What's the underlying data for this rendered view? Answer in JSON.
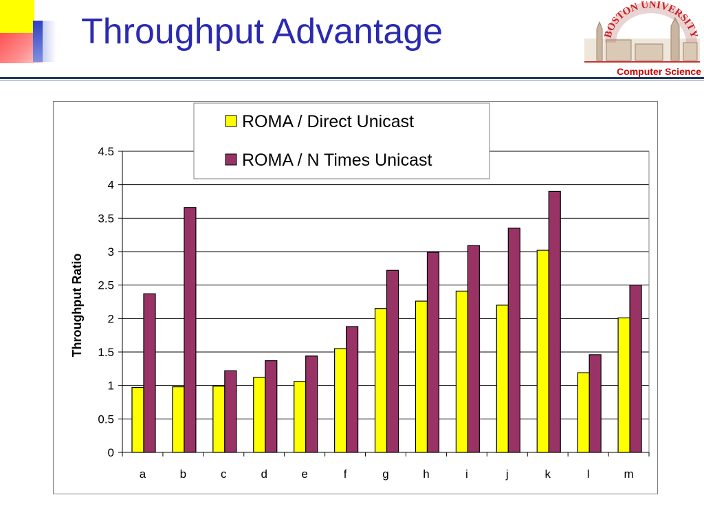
{
  "slide": {
    "title": "Throughput Advantage",
    "logo_text": "BOSTON UNIVERSITY",
    "logo_caption": "Computer Science",
    "accent_color": "#2a2ab0",
    "caption_color": "#cc0000"
  },
  "chart_data": {
    "type": "bar",
    "categories": [
      "a",
      "b",
      "c",
      "d",
      "e",
      "f",
      "g",
      "h",
      "i",
      "j",
      "k",
      "l",
      "m"
    ],
    "series": [
      {
        "name": "ROMA / Direct Unicast",
        "color": "#ffff00",
        "values": [
          0.97,
          0.98,
          0.99,
          1.12,
          1.06,
          1.55,
          2.15,
          2.26,
          2.41,
          2.2,
          3.02,
          1.19,
          2.01
        ]
      },
      {
        "name": "ROMA / N Times Unicast",
        "color": "#993366",
        "values": [
          2.37,
          3.66,
          1.22,
          1.37,
          1.44,
          1.88,
          2.72,
          2.99,
          3.09,
          3.35,
          3.9,
          1.46,
          2.5
        ]
      }
    ],
    "title": "",
    "xlabel": "",
    "ylabel": "Throughput Ratio",
    "ylim": [
      0,
      4.5
    ],
    "yticks": [
      "0",
      "0.5",
      "1",
      "1.5",
      "2",
      "2.5",
      "3",
      "3.5",
      "4",
      "4.5"
    ],
    "grid": true,
    "legend_position": "top-center"
  }
}
